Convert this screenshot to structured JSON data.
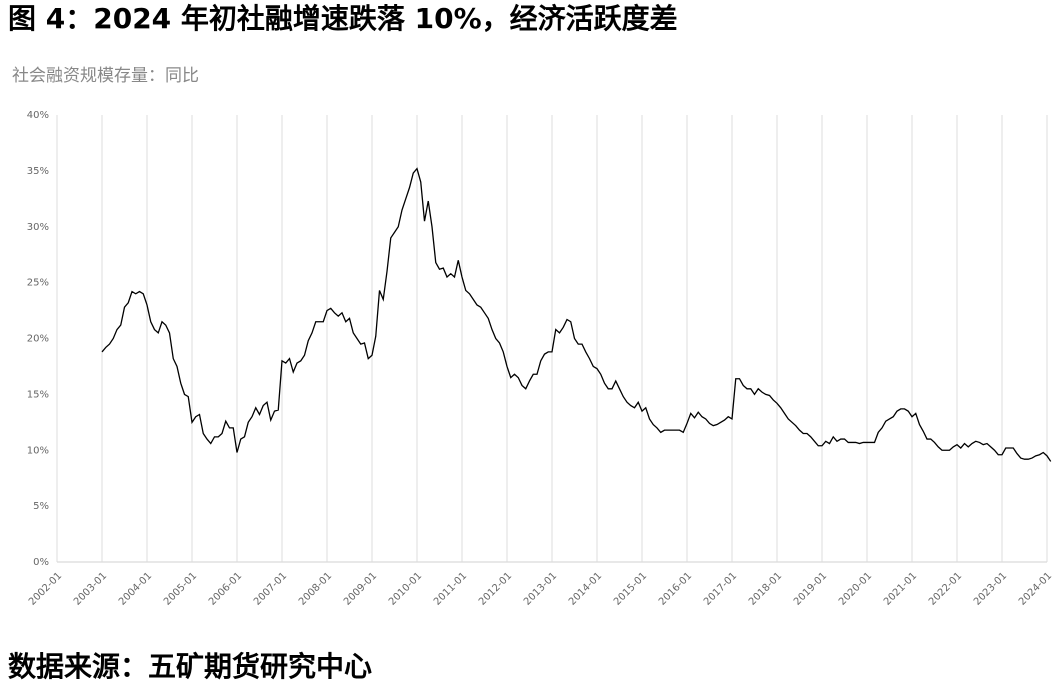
{
  "chart_data": {
    "type": "line",
    "title": "图 4：2024 年初社融增速跌落 10%，经济活跃度差",
    "subtitle": "社会融资规模存量：同比",
    "source": "数据来源：五矿期货研究中心",
    "color": "#000000",
    "grid": "vertical",
    "xlim": [
      "2002-01",
      "2024-01"
    ],
    "xticks": [
      "2002-01",
      "2003-01",
      "2004-01",
      "2005-01",
      "2006-01",
      "2007-01",
      "2008-01",
      "2009-01",
      "2010-01",
      "2011-01",
      "2012-01",
      "2013-01",
      "2014-01",
      "2015-01",
      "2016-01",
      "2017-01",
      "2018-01",
      "2019-01",
      "2020-01",
      "2021-01",
      "2022-01",
      "2023-01",
      "2024-01"
    ],
    "ylim": [
      0,
      40
    ],
    "yticks": [
      {
        "value": 0,
        "label": "0%"
      },
      {
        "value": 5,
        "label": "5%"
      },
      {
        "value": 10,
        "label": "10%"
      },
      {
        "value": 15,
        "label": "15%"
      },
      {
        "value": 20,
        "label": "20%"
      },
      {
        "value": 25,
        "label": "25%"
      },
      {
        "value": 30,
        "label": "30%"
      },
      {
        "value": 35,
        "label": "35%"
      },
      {
        "value": 40,
        "label": "40%"
      }
    ],
    "x": [
      "2003-01",
      "2003-02",
      "2003-03",
      "2003-04",
      "2003-05",
      "2003-06",
      "2003-07",
      "2003-08",
      "2003-09",
      "2003-10",
      "2003-11",
      "2003-12",
      "2004-01",
      "2004-02",
      "2004-03",
      "2004-04",
      "2004-05",
      "2004-06",
      "2004-07",
      "2004-08",
      "2004-09",
      "2004-10",
      "2004-11",
      "2004-12",
      "2005-01",
      "2005-02",
      "2005-03",
      "2005-04",
      "2005-05",
      "2005-06",
      "2005-07",
      "2005-08",
      "2005-09",
      "2005-10",
      "2005-11",
      "2005-12",
      "2006-01",
      "2006-02",
      "2006-03",
      "2006-04",
      "2006-05",
      "2006-06",
      "2006-07",
      "2006-08",
      "2006-09",
      "2006-10",
      "2006-11",
      "2006-12",
      "2007-01",
      "2007-02",
      "2007-03",
      "2007-04",
      "2007-05",
      "2007-06",
      "2007-07",
      "2007-08",
      "2007-09",
      "2007-10",
      "2007-11",
      "2007-12",
      "2008-01",
      "2008-02",
      "2008-03",
      "2008-04",
      "2008-05",
      "2008-06",
      "2008-07",
      "2008-08",
      "2008-09",
      "2008-10",
      "2008-11",
      "2008-12",
      "2009-01",
      "2009-02",
      "2009-03",
      "2009-04",
      "2009-05",
      "2009-06",
      "2009-07",
      "2009-08",
      "2009-09",
      "2009-10",
      "2009-11",
      "2009-12",
      "2010-01",
      "2010-02",
      "2010-03",
      "2010-04",
      "2010-05",
      "2010-06",
      "2010-07",
      "2010-08",
      "2010-09",
      "2010-10",
      "2010-11",
      "2010-12",
      "2011-01",
      "2011-02",
      "2011-03",
      "2011-04",
      "2011-05",
      "2011-06",
      "2011-07",
      "2011-08",
      "2011-09",
      "2011-10",
      "2011-11",
      "2011-12",
      "2012-01",
      "2012-02",
      "2012-03",
      "2012-04",
      "2012-05",
      "2012-06",
      "2012-07",
      "2012-08",
      "2012-09",
      "2012-10",
      "2012-11",
      "2012-12",
      "2013-01",
      "2013-02",
      "2013-03",
      "2013-04",
      "2013-05",
      "2013-06",
      "2013-07",
      "2013-08",
      "2013-09",
      "2013-10",
      "2013-11",
      "2013-12",
      "2014-01",
      "2014-02",
      "2014-03",
      "2014-04",
      "2014-05",
      "2014-06",
      "2014-07",
      "2014-08",
      "2014-09",
      "2014-10",
      "2014-11",
      "2014-12",
      "2015-01",
      "2015-02",
      "2015-03",
      "2015-04",
      "2015-05",
      "2015-06",
      "2015-07",
      "2015-08",
      "2015-09",
      "2015-10",
      "2015-11",
      "2015-12",
      "2016-01",
      "2016-02",
      "2016-03",
      "2016-04",
      "2016-05",
      "2016-06",
      "2016-07",
      "2016-08",
      "2016-09",
      "2016-10",
      "2016-11",
      "2016-12",
      "2017-01",
      "2017-02",
      "2017-03",
      "2017-04",
      "2017-05",
      "2017-06",
      "2017-07",
      "2017-08",
      "2017-09",
      "2017-10",
      "2017-11",
      "2017-12",
      "2018-01",
      "2018-02",
      "2018-03",
      "2018-04",
      "2018-05",
      "2018-06",
      "2018-07",
      "2018-08",
      "2018-09",
      "2018-10",
      "2018-11",
      "2018-12",
      "2019-01",
      "2019-02",
      "2019-03",
      "2019-04",
      "2019-05",
      "2019-06",
      "2019-07",
      "2019-08",
      "2019-09",
      "2019-10",
      "2019-11",
      "2019-12",
      "2020-01",
      "2020-02",
      "2020-03",
      "2020-04",
      "2020-05",
      "2020-06",
      "2020-07",
      "2020-08",
      "2020-09",
      "2020-10",
      "2020-11",
      "2020-12",
      "2021-01",
      "2021-02",
      "2021-03",
      "2021-04",
      "2021-05",
      "2021-06",
      "2021-07",
      "2021-08",
      "2021-09",
      "2021-10",
      "2021-11",
      "2021-12",
      "2022-01",
      "2022-02",
      "2022-03",
      "2022-04",
      "2022-05",
      "2022-06",
      "2022-07",
      "2022-08",
      "2022-09",
      "2022-10",
      "2022-11",
      "2022-12",
      "2023-01",
      "2023-02",
      "2023-03",
      "2023-04",
      "2023-05",
      "2023-06",
      "2023-07",
      "2023-08",
      "2023-09",
      "2023-10",
      "2023-11",
      "2023-12",
      "2024-01",
      "2024-02"
    ],
    "values": [
      18.8,
      19.2,
      19.5,
      20.0,
      20.8,
      21.2,
      22.8,
      23.2,
      24.2,
      24.0,
      24.2,
      24.0,
      23.0,
      21.5,
      20.8,
      20.5,
      21.5,
      21.2,
      20.5,
      18.2,
      17.5,
      16.0,
      15.0,
      14.8,
      12.5,
      13.0,
      13.2,
      11.5,
      11.0,
      10.6,
      11.2,
      11.2,
      11.5,
      12.6,
      12.0,
      12.0,
      9.8,
      11.0,
      11.2,
      12.5,
      13.0,
      13.8,
      13.2,
      14.0,
      14.3,
      12.7,
      13.5,
      13.6,
      18.0,
      17.8,
      18.2,
      17.0,
      17.8,
      18.0,
      18.5,
      19.8,
      20.5,
      21.5,
      21.5,
      21.5,
      22.5,
      22.7,
      22.3,
      22.0,
      22.3,
      21.5,
      21.8,
      20.5,
      20.0,
      19.5,
      19.6,
      18.2,
      18.5,
      20.2,
      24.3,
      23.5,
      26.0,
      29.0,
      29.5,
      30.0,
      31.5,
      32.5,
      33.5,
      34.8,
      35.2,
      34.0,
      30.5,
      32.3,
      30.0,
      26.8,
      26.2,
      26.3,
      25.5,
      25.8,
      25.5,
      27.0,
      25.5,
      24.3,
      24.0,
      23.5,
      23.0,
      22.8,
      22.3,
      21.8,
      20.8,
      20.0,
      19.6,
      18.8,
      17.5,
      16.5,
      16.8,
      16.5,
      15.8,
      15.5,
      16.2,
      16.8,
      16.8,
      18.0,
      18.6,
      18.8,
      18.8,
      20.8,
      20.5,
      21.0,
      21.7,
      21.5,
      20.0,
      19.5,
      19.5,
      18.8,
      18.2,
      17.5,
      17.3,
      16.8,
      16.0,
      15.5,
      15.5,
      16.2,
      15.5,
      14.8,
      14.3,
      14.0,
      13.8,
      14.3,
      13.5,
      13.8,
      12.8,
      12.3,
      12.0,
      11.6,
      11.8,
      11.8,
      11.8,
      11.8,
      11.8,
      11.6,
      12.4,
      13.3,
      12.9,
      13.4,
      13.0,
      12.8,
      12.4,
      12.2,
      12.3,
      12.5,
      12.7,
      13.0,
      12.8,
      16.4,
      16.4,
      15.8,
      15.5,
      15.5,
      15.0,
      15.5,
      15.2,
      15.0,
      14.9,
      14.5,
      14.2,
      13.8,
      13.3,
      12.8,
      12.5,
      12.2,
      11.8,
      11.5,
      11.5,
      11.2,
      10.8,
      10.4,
      10.4,
      10.8,
      10.6,
      11.2,
      10.8,
      11.0,
      11.0,
      10.7,
      10.7,
      10.7,
      10.6,
      10.7,
      10.7,
      10.7,
      10.7,
      11.6,
      12.0,
      12.6,
      12.8,
      13.0,
      13.5,
      13.7,
      13.7,
      13.5,
      13.0,
      13.3,
      12.3,
      11.7,
      11.0,
      11.0,
      10.7,
      10.3,
      10.0,
      10.0,
      10.0,
      10.3,
      10.5,
      10.2,
      10.6,
      10.3,
      10.6,
      10.8,
      10.7,
      10.5,
      10.6,
      10.3,
      10.0,
      9.6,
      9.6,
      10.2,
      10.2,
      10.2,
      9.7,
      9.3,
      9.2,
      9.2,
      9.3,
      9.5,
      9.6,
      9.8,
      9.5,
      9.0
    ]
  }
}
